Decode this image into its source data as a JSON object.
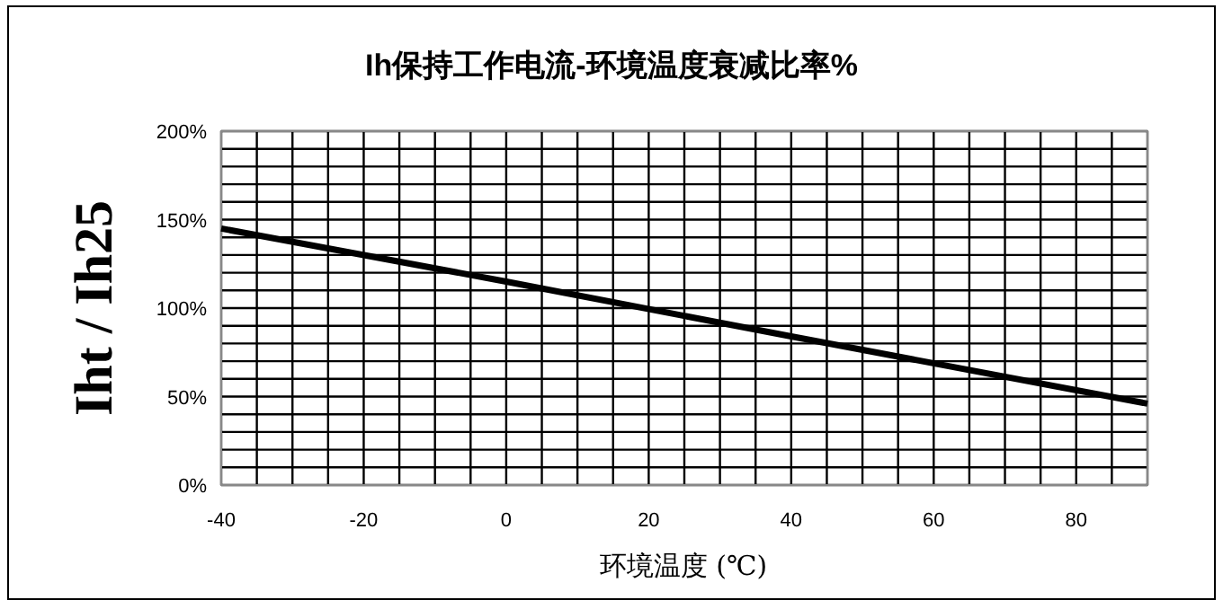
{
  "chart_data": {
    "type": "line",
    "title": "Ih保持工作电流-环境温度衰减比率%",
    "xlabel": "环境温度 (℃)",
    "ylabel": "Iht / Ih25",
    "x": [
      -40,
      0,
      40,
      90
    ],
    "series": [
      {
        "color": "#000000",
        "values": [
          145,
          115,
          84,
          46
        ]
      }
    ],
    "xlim": [
      -40,
      90
    ],
    "xticks": [
      -40,
      {
        "value": -35,
        "label": null
      },
      {
        "value": -30,
        "label": null
      },
      {
        "value": -25,
        "label": null
      },
      -20,
      {
        "value": -15,
        "label": null
      },
      {
        "value": -10,
        "label": null
      },
      {
        "value": -5,
        "label": null
      },
      0,
      {
        "value": 5,
        "label": null
      },
      {
        "value": 10,
        "label": null
      },
      {
        "value": 15,
        "label": null
      },
      20,
      {
        "value": 25,
        "label": null
      },
      {
        "value": 30,
        "label": null
      },
      {
        "value": 35,
        "label": null
      },
      40,
      {
        "value": 45,
        "label": null
      },
      {
        "value": 50,
        "label": null
      },
      {
        "value": 55,
        "label": null
      },
      60,
      {
        "value": 65,
        "label": null
      },
      {
        "value": 70,
        "label": null
      },
      {
        "value": 75,
        "label": null
      },
      80,
      {
        "value": 85,
        "label": null
      },
      {
        "value": 90,
        "label": null
      }
    ],
    "ylim": [
      0,
      200
    ],
    "yticks": [
      {
        "value": 0,
        "label": "0%"
      },
      {
        "value": 10,
        "label": null
      },
      {
        "value": 20,
        "label": null
      },
      {
        "value": 30,
        "label": null
      },
      {
        "value": 40,
        "label": null
      },
      {
        "value": 50,
        "label": "50%"
      },
      {
        "value": 60,
        "label": null
      },
      {
        "value": 70,
        "label": null
      },
      {
        "value": 80,
        "label": null
      },
      {
        "value": 90,
        "label": null
      },
      {
        "value": 100,
        "label": "100%"
      },
      {
        "value": 110,
        "label": null
      },
      {
        "value": 120,
        "label": null
      },
      {
        "value": 130,
        "label": null
      },
      {
        "value": 140,
        "label": null
      },
      {
        "value": 150,
        "label": "150%"
      },
      {
        "value": 160,
        "label": null
      },
      {
        "value": 170,
        "label": null
      },
      {
        "value": 180,
        "label": null
      },
      {
        "value": 190,
        "label": null
      },
      {
        "value": 200,
        "label": "200%"
      }
    ],
    "grid": true,
    "marker": "none",
    "line_style": "solid"
  }
}
